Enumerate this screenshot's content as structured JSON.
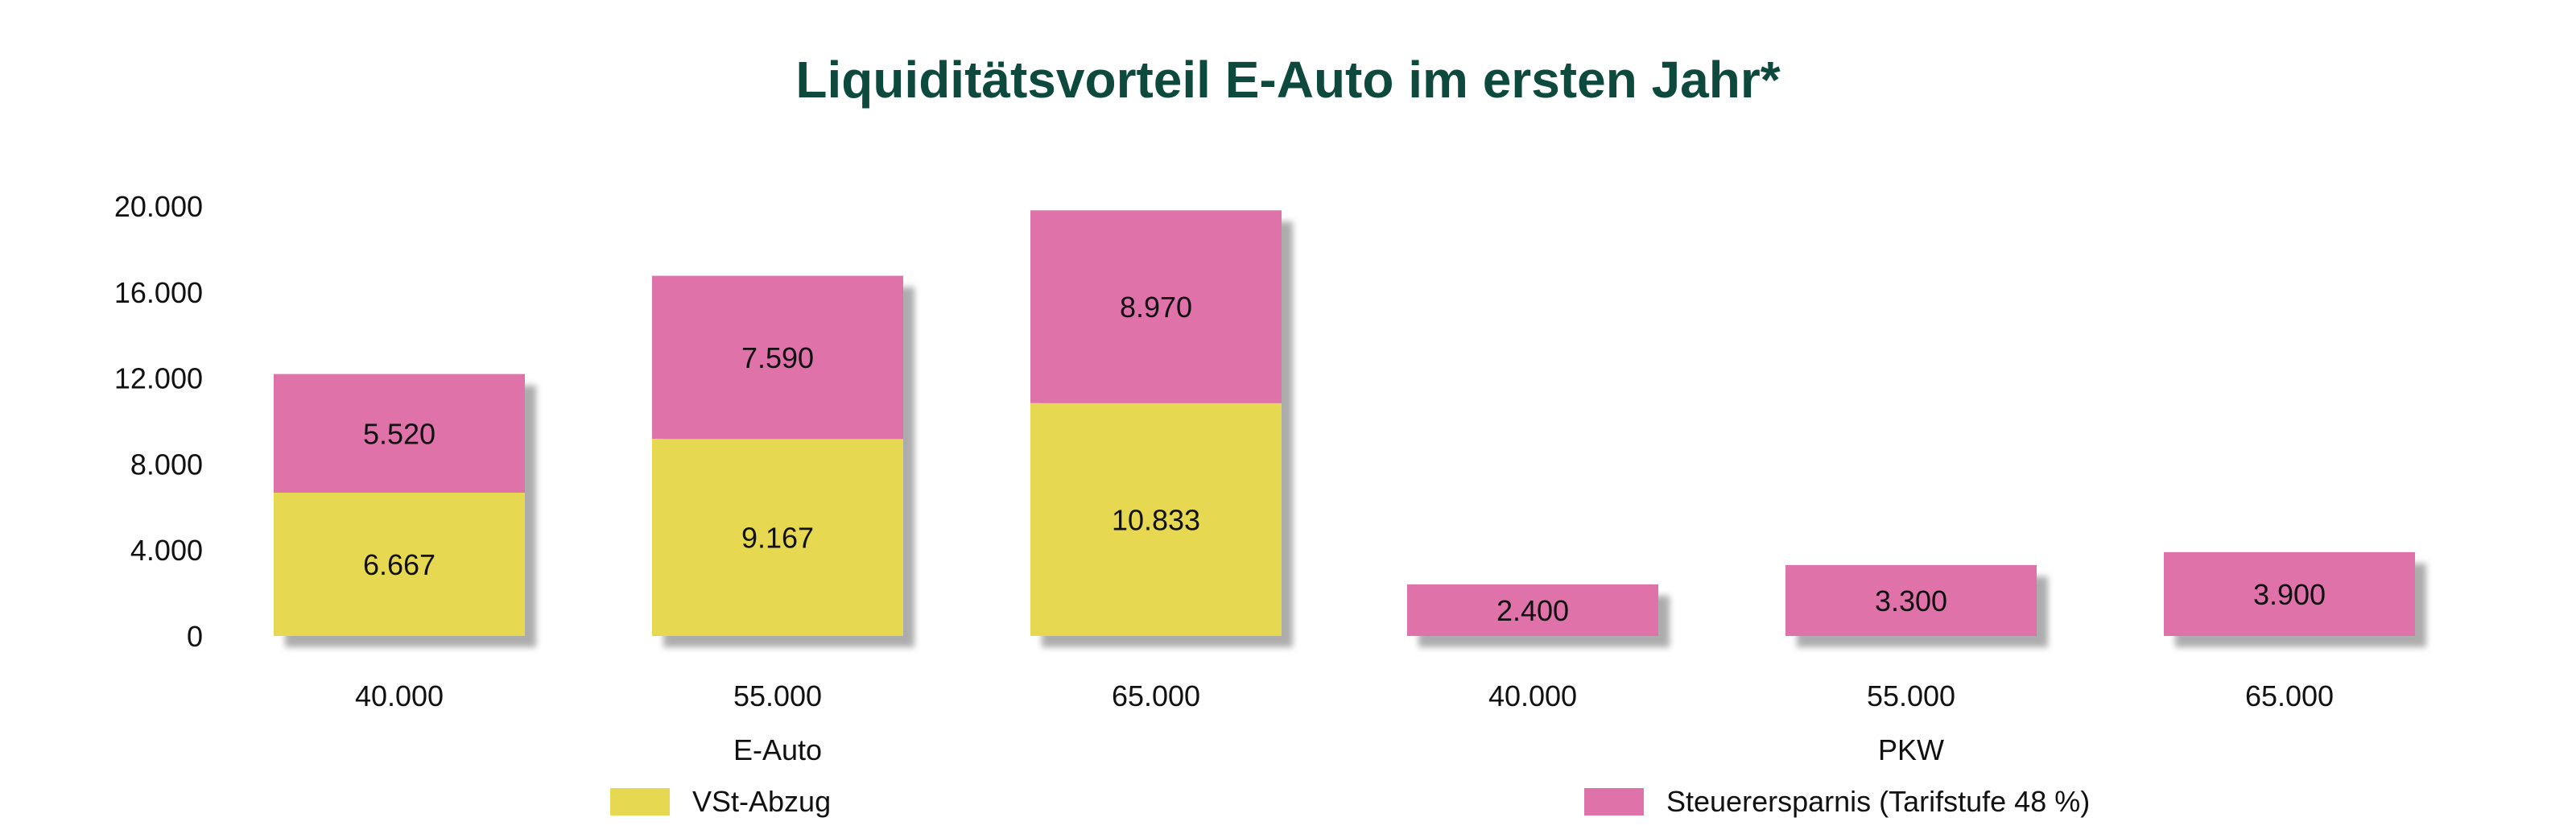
{
  "chart_data": {
    "type": "bar",
    "stacked": true,
    "title": "Liquiditätsvorteil E-Auto im ersten Jahr*",
    "categories": [
      "40.000",
      "55.000",
      "65.000",
      "40.000",
      "55.000",
      "65.000"
    ],
    "groups": [
      {
        "label": "E-Auto",
        "category_indices": [
          0,
          1,
          2
        ]
      },
      {
        "label": "PKW",
        "category_indices": [
          3,
          4,
          5
        ]
      }
    ],
    "series": [
      {
        "name": "VSt-Abzug",
        "color": "#e6d951",
        "values": [
          6667,
          9167,
          10833,
          0,
          0,
          0
        ],
        "labels": [
          "6.667",
          "9.167",
          "10.833",
          "",
          "",
          ""
        ]
      },
      {
        "name": "Steuerersparnis (Tarifstufe 48 %)",
        "color": "#de72a9",
        "values": [
          5520,
          7590,
          8970,
          2400,
          3300,
          3900
        ],
        "labels": [
          "5.520",
          "7.590",
          "8.970",
          "2.400",
          "3.300",
          "3.900"
        ]
      }
    ],
    "yticks": [
      "0",
      "4.000",
      "8.000",
      "12.000",
      "16.000",
      "20.000"
    ],
    "ylim": [
      0,
      20000
    ],
    "grid": false,
    "legend": "bottom"
  }
}
